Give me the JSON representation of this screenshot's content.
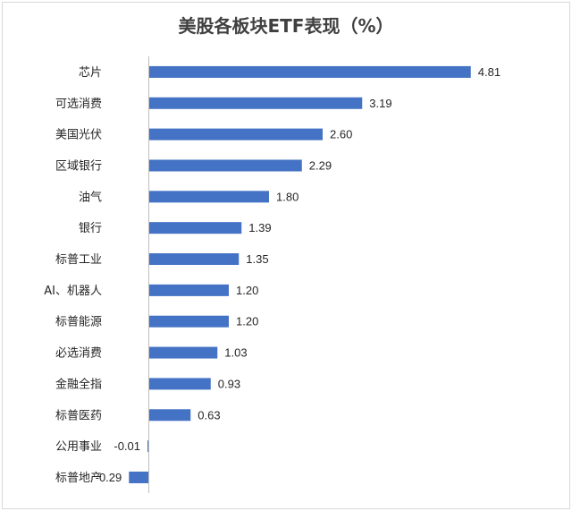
{
  "chart_data": {
    "type": "bar",
    "orientation": "horizontal",
    "title": "美股各板块ETF表现（%）",
    "categories": [
      "芯片",
      "可选消费",
      "美国光伏",
      "区域银行",
      "油气",
      "银行",
      "标普工业",
      "AI、机器人",
      "标普能源",
      "必选消费",
      "金融全指",
      "标普医药",
      "公用事业",
      "标普地产"
    ],
    "values": [
      4.81,
      3.19,
      2.6,
      2.29,
      1.8,
      1.39,
      1.35,
      1.2,
      1.2,
      1.03,
      0.93,
      0.63,
      -0.01,
      -0.29
    ],
    "value_labels": [
      "4.81",
      "3.19",
      "2.60",
      "2.29",
      "1.80",
      "1.39",
      "1.35",
      "1.20",
      "1.20",
      "1.03",
      "0.93",
      "0.63",
      "-0.01",
      "-0.29"
    ],
    "grid": false,
    "legend": "none",
    "colors": {
      "bar": "#4472c4"
    }
  }
}
